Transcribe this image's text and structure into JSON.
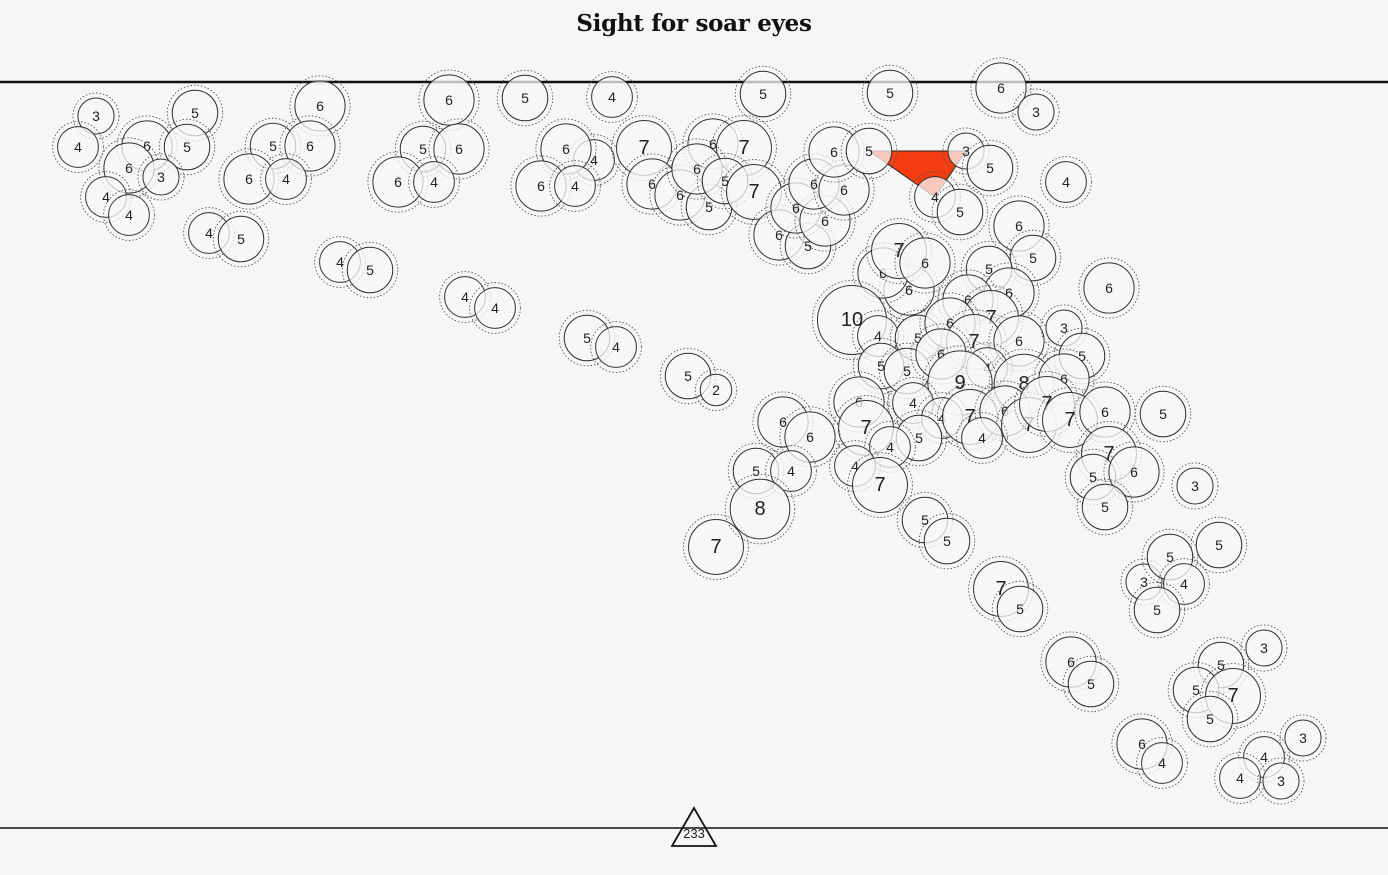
{
  "title": "Sight for soar eyes",
  "counter": "233",
  "colors": {
    "background": "#f7f6f6",
    "line": "#111111",
    "active_polygon": "#f43d10",
    "circle_fill": "#f8f7f7",
    "circle_stroke": "#333333"
  },
  "active_polygon_values": [
    "3",
    "4",
    "5"
  ],
  "circle_values": [
    "3",
    "4",
    "5",
    "6",
    "5",
    "6",
    "3",
    "4",
    "4",
    "4",
    "5",
    "6",
    "5",
    "6",
    "6",
    "4",
    "4",
    "5",
    "6",
    "5",
    "6",
    "6",
    "4",
    "4",
    "4",
    "5",
    "4",
    "4",
    "5",
    "4",
    "5",
    "2",
    "7",
    "6",
    "6",
    "4",
    "7",
    "6",
    "6",
    "5",
    "6",
    "7",
    "6",
    "5",
    "7",
    "6",
    "5",
    "6",
    "6",
    "6",
    "6",
    "5",
    "6",
    "5",
    "5",
    "3",
    "4",
    "5",
    "5",
    "6",
    "3",
    "4",
    "6",
    "6",
    "5",
    "5",
    "6",
    "6",
    "7",
    "6",
    "6",
    "7",
    "6",
    "10",
    "4",
    "5",
    "6",
    "7",
    "6",
    "3",
    "5",
    "5",
    "5",
    "6",
    "4",
    "9",
    "8",
    "6",
    "6",
    "7",
    "4",
    "4",
    "7",
    "6",
    "7",
    "7",
    "7",
    "6",
    "5",
    "4",
    "6",
    "6",
    "5",
    "4",
    "5",
    "4",
    "8",
    "4",
    "7",
    "5",
    "5",
    "7",
    "5",
    "6",
    "5",
    "3",
    "5",
    "3",
    "5",
    "4",
    "5",
    "7",
    "5",
    "6",
    "5",
    "3",
    "5",
    "5",
    "7",
    "5",
    "6",
    "4",
    "3",
    "4",
    "4",
    "3"
  ]
}
